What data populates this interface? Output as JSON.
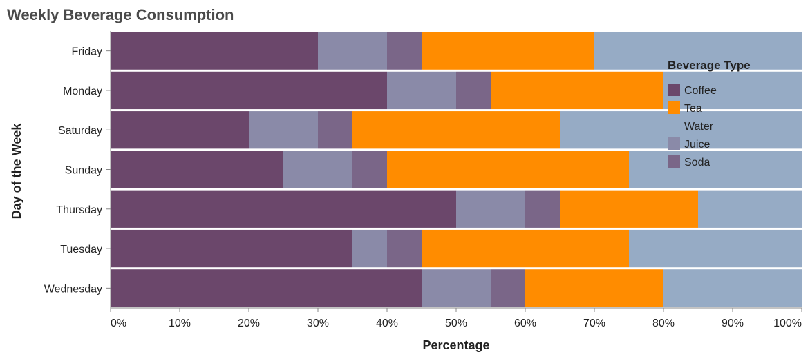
{
  "chart_data": {
    "type": "bar",
    "orientation": "horizontal",
    "stacked": "normalized",
    "title": "Weekly Beverage Consumption",
    "xlabel": "Percentage",
    "ylabel": "Day of the Week",
    "xlim": [
      0,
      100
    ],
    "x_ticks": [
      "0%",
      "10%",
      "20%",
      "30%",
      "40%",
      "50%",
      "60%",
      "70%",
      "80%",
      "90%",
      "100%"
    ],
    "categories": [
      "Friday",
      "Monday",
      "Saturday",
      "Sunday",
      "Thursday",
      "Tuesday",
      "Wednesday"
    ],
    "series": [
      {
        "name": "Coffee",
        "color": "#6b476b",
        "values": [
          30,
          40,
          20,
          25,
          50,
          35,
          45
        ]
      },
      {
        "name": "Juice",
        "color": "#8a8aa8",
        "values": [
          10,
          10,
          10,
          10,
          10,
          5,
          10
        ]
      },
      {
        "name": "Soda",
        "color": "#7a6688",
        "values": [
          5,
          5,
          5,
          5,
          5,
          5,
          5
        ]
      },
      {
        "name": "Tea",
        "color": "#ff8c00",
        "values": [
          25,
          25,
          30,
          35,
          20,
          30,
          20
        ]
      },
      {
        "name": "Water",
        "color": "#96abc5",
        "values": [
          30,
          20,
          35,
          25,
          15,
          25,
          20
        ]
      }
    ],
    "legend": {
      "title": "Beverage Type",
      "position": "top-right",
      "entries": [
        {
          "name": "Coffee",
          "color": "#6b476b",
          "swatch": true
        },
        {
          "name": "Tea",
          "color": "#ff8c00",
          "swatch": true
        },
        {
          "name": "Water",
          "color": "#96abc5",
          "swatch": false
        },
        {
          "name": "Juice",
          "color": "#8a8aa8",
          "swatch": true
        },
        {
          "name": "Soda",
          "color": "#7a6688",
          "swatch": true
        }
      ]
    },
    "grid": false
  }
}
